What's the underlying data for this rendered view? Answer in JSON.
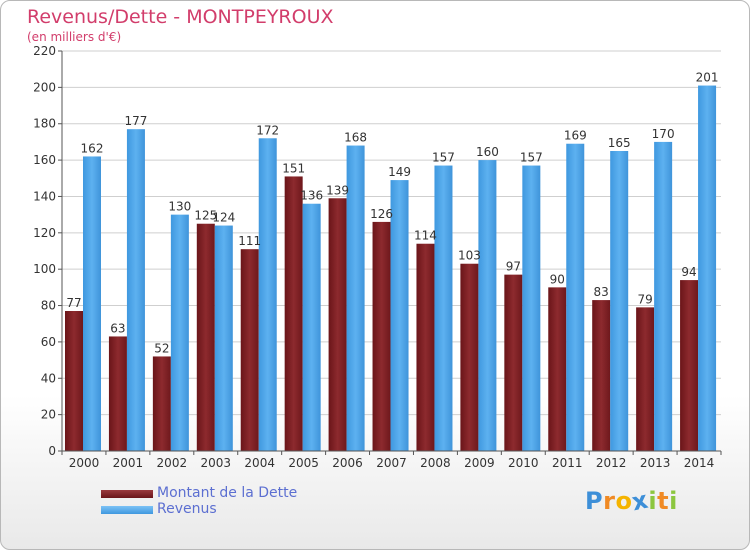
{
  "header": {
    "title": "Revenus/Dette - MONTPEYROUX",
    "subtitle": "(en milliers d'€)"
  },
  "legend": {
    "debt_label": "Montant de la Dette",
    "revenue_label": "Revenus"
  },
  "logo": {
    "text": "Proxiti",
    "letters": [
      "P",
      "r",
      "o",
      "x",
      "i",
      "t",
      "i"
    ],
    "letter_colors": [
      "#3d8fd8",
      "#f08a24",
      "#f5b400",
      "#3d8fd8",
      "#8cc63f",
      "#f08a24",
      "#8cc63f"
    ]
  },
  "colors": {
    "debt": "#7a1f24",
    "debt_light": "#8d2a2e",
    "revenue": "#4aa3e8",
    "revenue_light": "#5db1f0",
    "grid": "#cfcfcf",
    "axis": "#555555",
    "label": "#333333"
  },
  "chart_data": {
    "type": "bar",
    "title": "Revenus/Dette - MONTPEYROUX",
    "ylabel": "(en milliers d'€)",
    "xlabel": "",
    "ylim": [
      0,
      220
    ],
    "yticks": [
      0,
      20,
      40,
      60,
      80,
      100,
      120,
      140,
      160,
      180,
      200,
      220
    ],
    "grid": true,
    "legend_position": "bottom-left",
    "categories": [
      "2000",
      "2001",
      "2002",
      "2003",
      "2004",
      "2005",
      "2006",
      "2007",
      "2008",
      "2009",
      "2010",
      "2011",
      "2012",
      "2013",
      "2014"
    ],
    "series": [
      {
        "name": "Montant de la Dette",
        "values": [
          77,
          63,
          52,
          125,
          111,
          151,
          139,
          126,
          114,
          103,
          97,
          90,
          83,
          79,
          94
        ]
      },
      {
        "name": "Revenus",
        "values": [
          162,
          177,
          130,
          124,
          172,
          136,
          168,
          149,
          157,
          160,
          157,
          169,
          165,
          170,
          201
        ]
      }
    ]
  }
}
